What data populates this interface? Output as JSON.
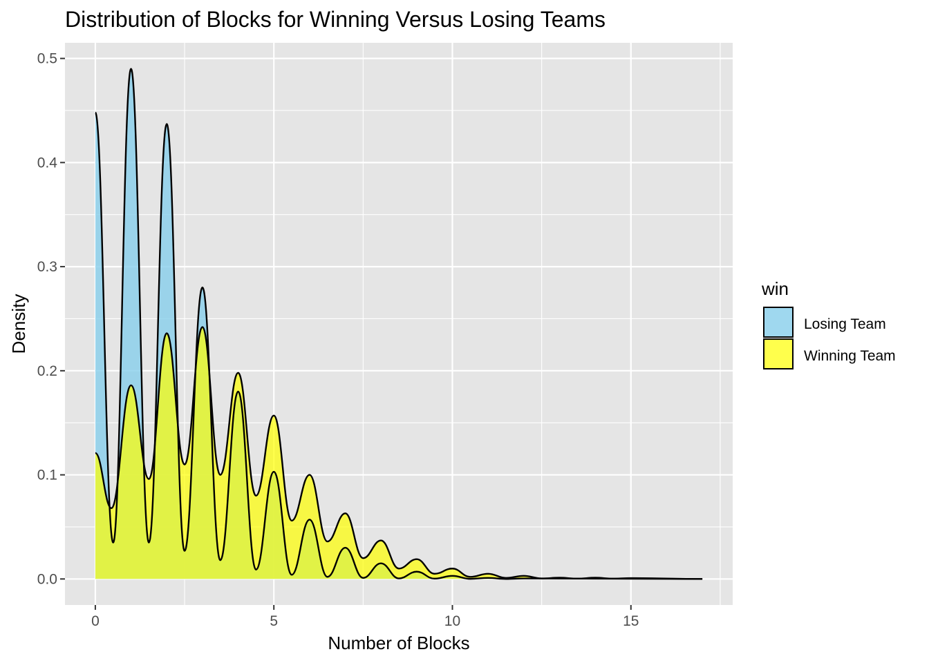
{
  "chart_data": {
    "type": "area",
    "title": "Distribution of Blocks for Winning Versus Losing Teams",
    "xlabel": "Number of Blocks",
    "ylabel": "Density",
    "xlim": [
      -0.85,
      17.85
    ],
    "ylim": [
      -0.025,
      0.515
    ],
    "x_ticks": [
      0,
      5,
      10,
      15
    ],
    "x_tick_labels": [
      "0",
      "5",
      "10",
      "15"
    ],
    "y_ticks": [
      0.0,
      0.1,
      0.2,
      0.3,
      0.4,
      0.5
    ],
    "y_tick_labels": [
      "0.0",
      "0.1",
      "0.2",
      "0.3",
      "0.4",
      "0.5"
    ],
    "grid": true,
    "legend": {
      "title": "win",
      "position": "right",
      "entries": [
        {
          "label": "Losing Team",
          "color": "#87ceeb"
        },
        {
          "label": "Winning Team",
          "color": "#ffff00"
        }
      ]
    },
    "series": [
      {
        "name": "Losing Team",
        "color": "#87ceeb",
        "x": [
          0,
          0.5,
          1,
          1.5,
          2,
          2.5,
          3,
          3.5,
          4,
          4.5,
          5,
          5.5,
          6,
          6.5,
          7,
          7.5,
          8,
          8.5,
          9,
          9.5,
          10,
          10.5,
          11,
          11.5,
          12,
          17
        ],
        "values": [
          0.448,
          0.035,
          0.49,
          0.035,
          0.437,
          0.027,
          0.28,
          0.018,
          0.18,
          0.009,
          0.103,
          0.004,
          0.057,
          0.002,
          0.03,
          0.001,
          0.015,
          0.0005,
          0.007,
          0.0003,
          0.003,
          0.0001,
          0.001,
          5e-05,
          0.0005,
          0
        ]
      },
      {
        "name": "Winning Team",
        "color": "#ffff00",
        "x": [
          0,
          0.45,
          1,
          1.5,
          2,
          2.5,
          3,
          3.5,
          4,
          4.5,
          5,
          5.5,
          6,
          6.5,
          7,
          7.5,
          8,
          8.5,
          9,
          9.5,
          10,
          10.5,
          11,
          11.5,
          12,
          12.5,
          13,
          13.5,
          14,
          14.5,
          15,
          17
        ],
        "values": [
          0.121,
          0.068,
          0.186,
          0.096,
          0.236,
          0.11,
          0.242,
          0.1,
          0.198,
          0.08,
          0.157,
          0.056,
          0.1,
          0.036,
          0.063,
          0.02,
          0.037,
          0.01,
          0.019,
          0.005,
          0.01,
          0.002,
          0.005,
          0.001,
          0.003,
          0.0005,
          0.0012,
          0.0003,
          0.0012,
          0.0003,
          0.0008,
          0
        ]
      }
    ]
  }
}
